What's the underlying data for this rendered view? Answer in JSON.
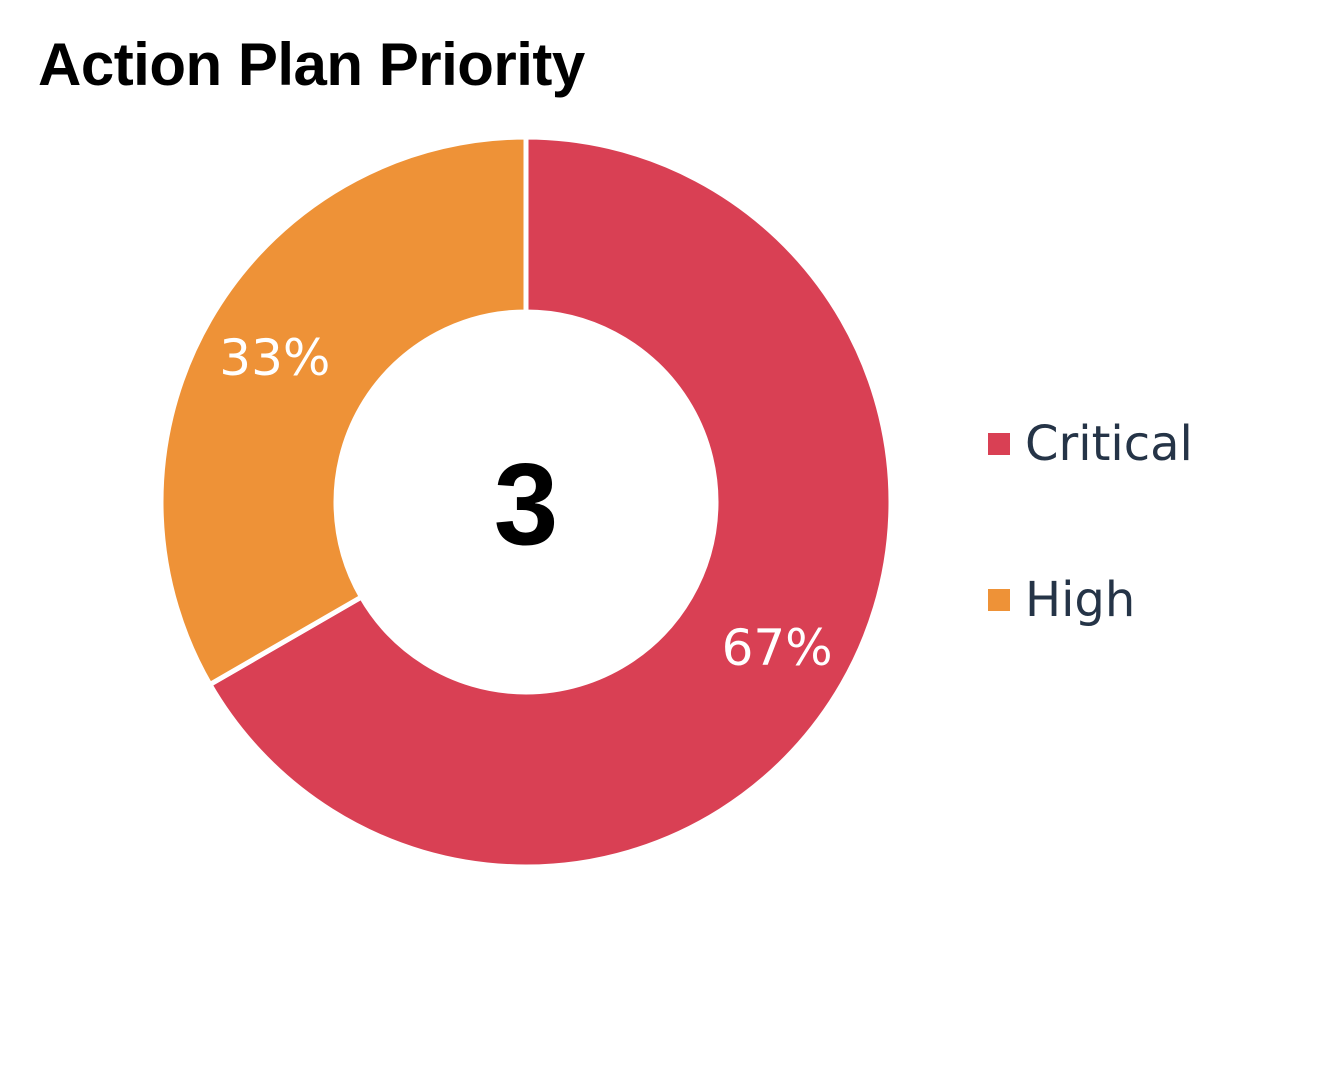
{
  "chart_data": {
    "type": "pie",
    "style": "donut",
    "title": "Action Plan Priority",
    "center_label": "3",
    "categories": [
      "Critical",
      "High"
    ],
    "values": [
      2,
      1
    ],
    "percent_labels": [
      "67%",
      "33%"
    ],
    "colors": [
      "#d94054",
      "#ee9237"
    ],
    "legend_position": "right"
  },
  "legend": [
    {
      "label": "Critical",
      "color": "#d94054"
    },
    {
      "label": "High",
      "color": "#ee9237"
    }
  ]
}
